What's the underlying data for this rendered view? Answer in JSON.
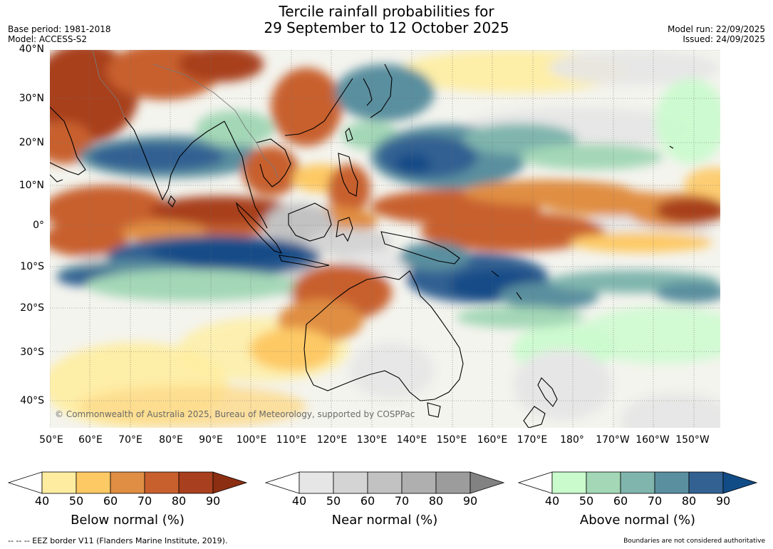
{
  "title": {
    "line1": "Tercile rainfall probabilities for",
    "line2": "29 September to 12 October 2025"
  },
  "meta": {
    "base_period": "Base period: 1981-2018",
    "model": "Model: ACCESS-S2",
    "model_run": "Model run: 22/09/2025",
    "issued": "Issued: 24/09/2025"
  },
  "axes": {
    "lat_labels": [
      "40°N",
      "30°N",
      "20°N",
      "10°N",
      "0°",
      "10°S",
      "20°S",
      "30°S",
      "40°S"
    ],
    "lon_labels": [
      "50°E",
      "60°E",
      "70°E",
      "80°E",
      "90°E",
      "100°E",
      "110°E",
      "120°E",
      "130°E",
      "140°E",
      "150°E",
      "160°E",
      "170°E",
      "180°",
      "170°W",
      "160°W",
      "150°W"
    ]
  },
  "copyright": "© Commonwealth of Australia 2025, Bureau of Meteorology, supported by COSPPac",
  "colorbars": [
    {
      "title": "Below normal (%)",
      "ticks": [
        "40",
        "50",
        "60",
        "70",
        "80",
        "90"
      ],
      "colors": [
        "#ffffff",
        "#feeda0",
        "#fdc965",
        "#e08e43",
        "#c8602e",
        "#a8401f",
        "#8c2e12"
      ]
    },
    {
      "title": "Near normal (%)",
      "ticks": [
        "40",
        "50",
        "60",
        "70",
        "80",
        "90"
      ],
      "colors": [
        "#ffffff",
        "#e6e6e6",
        "#d4d4d4",
        "#c2c2c2",
        "#afafaf",
        "#9c9c9c",
        "#828282"
      ]
    },
    {
      "title": "Above normal (%)",
      "ticks": [
        "40",
        "50",
        "60",
        "70",
        "80",
        "90"
      ],
      "colors": [
        "#ffffff",
        "#c9fbcc",
        "#a3d7b6",
        "#7fb5ad",
        "#5a8f9f",
        "#336192",
        "#124c87"
      ]
    }
  ],
  "footer": {
    "left": "--  --  -- EEZ border V11 (Flanders Marine Institute, 2019).",
    "right": "Boundaries are not considered authoritative"
  }
}
